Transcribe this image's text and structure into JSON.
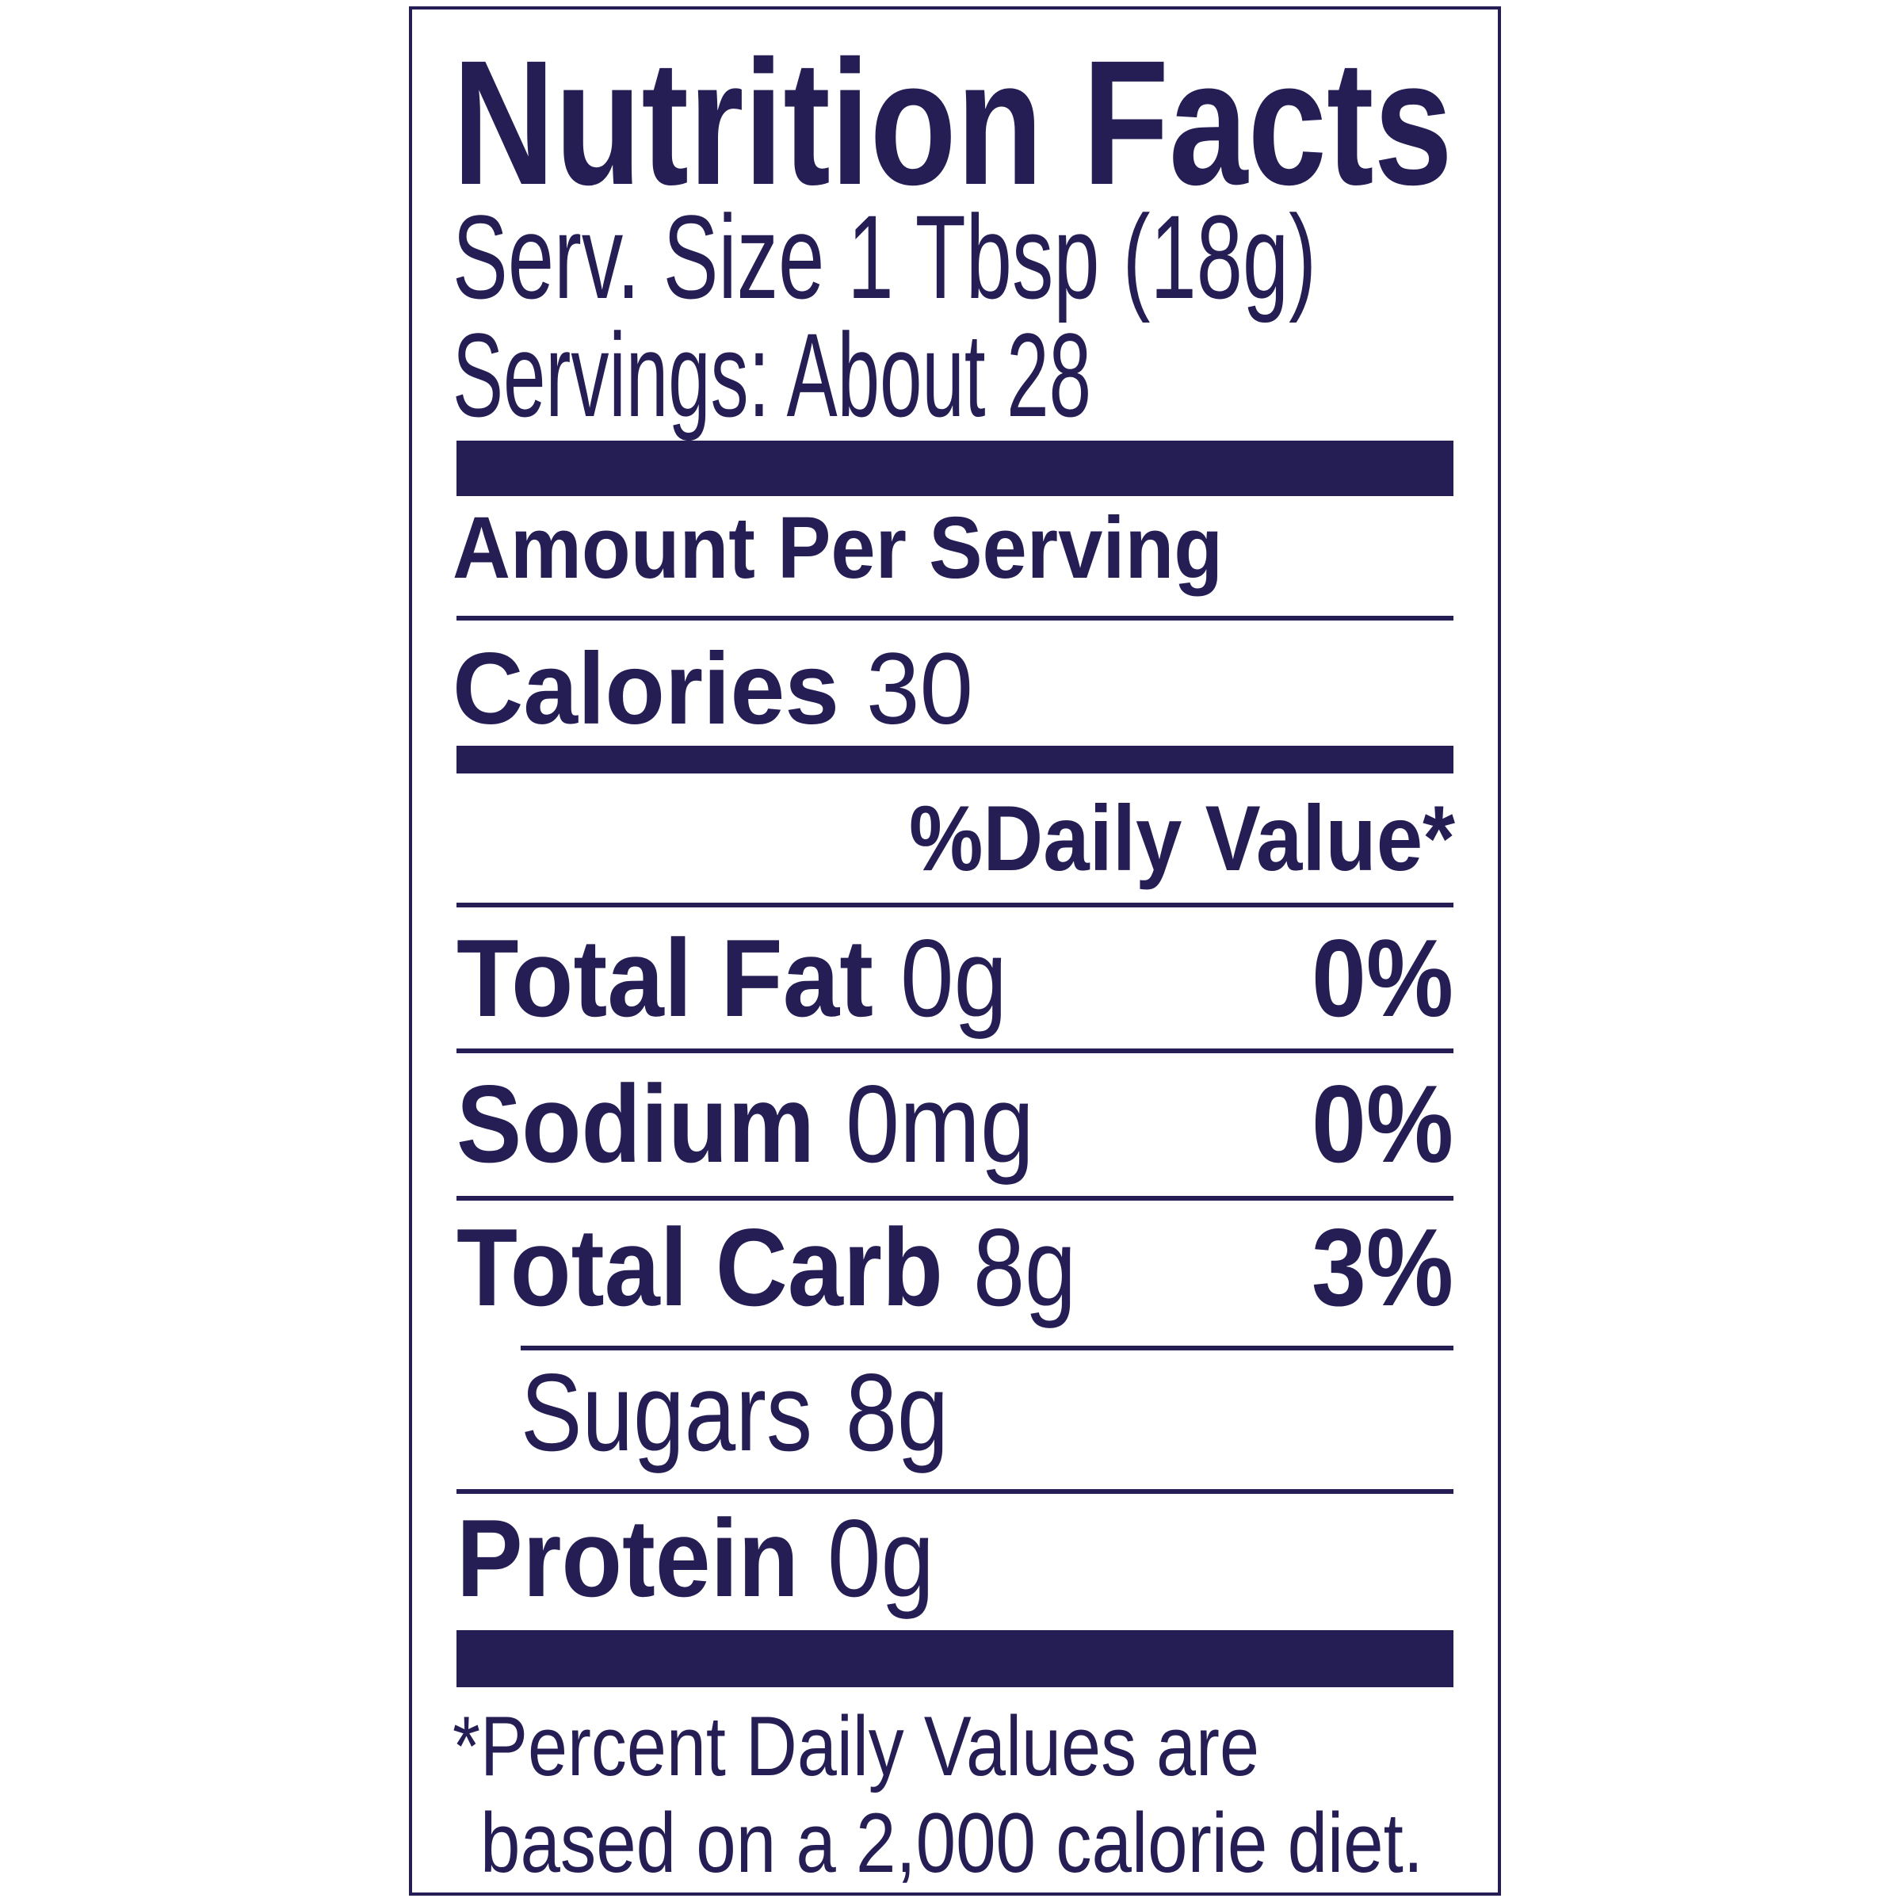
{
  "title": "Nutrition Facts",
  "serving_size": "Serv. Size 1 Tbsp (18g)",
  "servings": "Servings: About 28",
  "amount_per_serving": "Amount Per Serving",
  "calories": {
    "label": "Calories",
    "value": "30"
  },
  "daily_value_header": "%Daily Value*",
  "nutrients": [
    {
      "label": "Total Fat",
      "amount": "0g",
      "dv": "0%"
    },
    {
      "label": "Sodium",
      "amount": "0mg",
      "dv": "0%"
    },
    {
      "label": "Total Carb",
      "amount": "8g",
      "dv": "3%"
    },
    {
      "label": "Sugars",
      "amount": "8g"
    },
    {
      "label": "Protein",
      "amount": "0g"
    }
  ],
  "footnote": [
    "*Percent Daily Values are",
    "based on a 2,000 calorie diet."
  ]
}
